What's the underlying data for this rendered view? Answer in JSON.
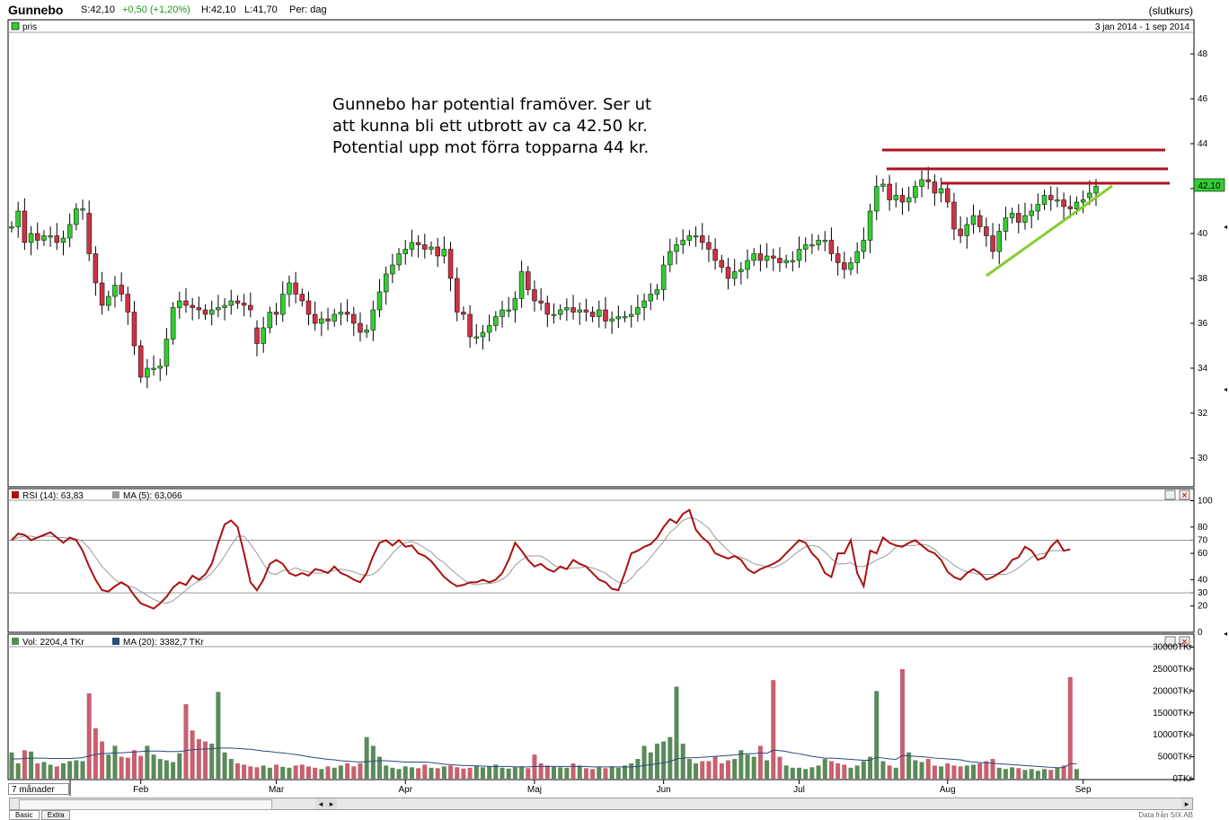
{
  "header": {
    "symbol": "Gunnebo",
    "items": [
      {
        "label": "S:",
        "value": "42,10",
        "color": "#000000"
      },
      {
        "label": "",
        "value": "+0,50 (+1,20%)",
        "color": "#1a9a1a"
      },
      {
        "label": "H:",
        "value": "42,10",
        "color": "#000000"
      },
      {
        "label": "L:",
        "value": "41,70",
        "color": "#000000"
      },
      {
        "label": "Per:",
        "value": "dag",
        "color": "#000000"
      }
    ],
    "mode": "(slutkurs)"
  },
  "price_panel": {
    "legend": "pris",
    "date_range": "3 jan 2014 - 1 sep 2014",
    "last_price_badge": "42,10",
    "annotation": [
      "Gunnebo har potential framöver. Ser ut",
      "att kunna bli ett utbrott av ca 42.50 kr.",
      "Potential upp mot förra topparna 44 kr."
    ]
  },
  "rsi_panel": {
    "legend_rsi": "RSI (14): 63,83",
    "legend_ma": "MA (5): 63,066"
  },
  "vol_panel": {
    "legend_vol": "Vol: 2204,4 TKr",
    "legend_ma": "MA (20): 3382,7 TKr"
  },
  "footer": {
    "period": "7 månader",
    "tabs": [
      "Basic",
      "Extra"
    ],
    "source": "Data från SIX AB"
  },
  "colors": {
    "up": "#33cc33",
    "down": "#cc3344",
    "rsi": "#aa1111",
    "rsi_ma": "#999999",
    "vol_up": "#5a8a5a",
    "vol_down": "#c86070",
    "vol_ma": "#2a4a7a",
    "resistance": "#b01020",
    "trend": "#88cc33"
  },
  "chart_data": [
    {
      "type": "candlestick",
      "name": "pris",
      "ylim": [
        29,
        49
      ],
      "yticks": [
        30,
        32,
        34,
        36,
        38,
        40,
        42,
        44,
        46,
        48
      ],
      "months": [
        "Feb",
        "Mar",
        "Apr",
        "Maj",
        "Jun",
        "Jul",
        "Aug",
        "Sep"
      ],
      "close": [
        40.3,
        41.0,
        39.6,
        40.0,
        39.7,
        39.9,
        39.9,
        39.6,
        39.8,
        40.4,
        41.1,
        41.1,
        39.1,
        37.8,
        36.8,
        37.2,
        37.7,
        37.3,
        36.5,
        35.0,
        33.6,
        34.0,
        34.0,
        34.1,
        35.3,
        36.7,
        37.0,
        36.8,
        36.7,
        36.6,
        36.4,
        36.6,
        36.7,
        36.8,
        37.0,
        36.9,
        36.8,
        36.6,
        35.1,
        35.8,
        36.5,
        36.4,
        37.3,
        37.8,
        37.3,
        37.0,
        36.4,
        36.0,
        36.2,
        36.1,
        36.4,
        36.5,
        36.4,
        36.0,
        35.6,
        35.7,
        36.6,
        37.4,
        38.2,
        38.6,
        39.1,
        39.3,
        39.6,
        39.5,
        39.3,
        39.4,
        39.0,
        39.3,
        38.0,
        36.5,
        36.4,
        35.4,
        35.4,
        35.6,
        35.9,
        36.3,
        36.6,
        36.6,
        37.1,
        38.3,
        37.5,
        37.0,
        36.9,
        36.4,
        36.4,
        36.6,
        36.7,
        36.5,
        36.6,
        36.5,
        36.3,
        36.6,
        36.1,
        36.2,
        36.3,
        36.3,
        36.4,
        36.7,
        37.0,
        37.3,
        37.5,
        38.6,
        39.2,
        39.5,
        39.7,
        39.9,
        39.9,
        39.6,
        39.3,
        38.8,
        38.5,
        38.0,
        38.3,
        38.4,
        38.8,
        39.1,
        38.8,
        39.0,
        38.9,
        38.7,
        38.8,
        38.8,
        39.3,
        39.5,
        39.5,
        39.7,
        39.7,
        39.1,
        38.7,
        38.4,
        38.7,
        39.2,
        39.7,
        41.0,
        42.1,
        42.2,
        41.5,
        41.7,
        41.4,
        41.6,
        42.1,
        42.4,
        42.3,
        41.8,
        42.0,
        41.4,
        40.2,
        39.9,
        40.4,
        40.8,
        40.3,
        39.9,
        39.2,
        40.1,
        40.7,
        40.9,
        40.5,
        40.8,
        41.0,
        41.3,
        41.7,
        41.5,
        41.5,
        41.2,
        41.1,
        41.4,
        41.5,
        41.8,
        42.1
      ],
      "open": [
        40.3,
        40.3,
        41.0,
        39.6,
        40.0,
        39.7,
        39.9,
        39.9,
        39.6,
        39.8,
        40.4,
        41.1,
        40.9,
        39.1,
        37.8,
        36.8,
        37.2,
        37.7,
        37.3,
        36.5,
        35.0,
        33.6,
        34.0,
        34.0,
        34.1,
        35.3,
        36.7,
        37.0,
        36.8,
        36.7,
        36.6,
        36.4,
        36.6,
        36.7,
        36.8,
        37.0,
        36.9,
        36.8,
        35.8,
        35.1,
        35.8,
        36.5,
        36.4,
        37.3,
        37.8,
        37.3,
        37.0,
        36.4,
        36.0,
        36.2,
        36.1,
        36.4,
        36.5,
        36.4,
        36.0,
        35.6,
        35.7,
        36.6,
        37.4,
        38.2,
        38.6,
        39.1,
        39.3,
        39.6,
        39.5,
        39.3,
        39.4,
        39.0,
        39.3,
        38.0,
        36.5,
        36.4,
        35.4,
        35.4,
        35.6,
        35.9,
        36.3,
        36.6,
        36.6,
        37.1,
        38.3,
        37.5,
        37.0,
        36.9,
        36.4,
        36.4,
        36.6,
        36.7,
        36.5,
        36.6,
        36.5,
        36.3,
        36.6,
        36.1,
        36.2,
        36.3,
        36.3,
        36.4,
        36.7,
        37.0,
        37.3,
        37.5,
        38.6,
        39.2,
        39.5,
        39.7,
        39.9,
        39.9,
        39.6,
        39.3,
        38.8,
        38.5,
        38.0,
        38.3,
        38.4,
        38.8,
        39.1,
        38.8,
        39.0,
        38.9,
        38.7,
        38.8,
        38.8,
        39.3,
        39.5,
        39.5,
        39.7,
        39.7,
        39.1,
        38.7,
        38.4,
        38.7,
        39.2,
        39.7,
        41.0,
        42.1,
        42.2,
        41.5,
        41.7,
        41.4,
        41.6,
        42.1,
        42.4,
        42.3,
        41.8,
        42.0,
        41.4,
        40.2,
        39.9,
        40.4,
        40.8,
        40.3,
        39.9,
        39.2,
        40.1,
        40.7,
        40.9,
        40.5,
        40.8,
        41.0,
        41.3,
        41.7,
        41.5,
        41.5,
        41.2,
        41.1,
        41.4,
        41.6,
        41.8
      ]
    },
    {
      "type": "line",
      "name": "RSI (14)",
      "ylim": [
        0,
        100
      ],
      "yticks": [
        0,
        20,
        30,
        40,
        60,
        70,
        80,
        100
      ],
      "reference_lines": [
        30,
        70
      ],
      "series": [
        {
          "name": "RSI (14)",
          "values": [
            70,
            75,
            74,
            70,
            72,
            74,
            76,
            72,
            68,
            72,
            70,
            62,
            50,
            40,
            32,
            31,
            35,
            38,
            35,
            28,
            22,
            20,
            18,
            22,
            27,
            34,
            38,
            36,
            43,
            40,
            44,
            52,
            68,
            82,
            85,
            80,
            60,
            38,
            32,
            40,
            52,
            55,
            52,
            45,
            43,
            45,
            43,
            48,
            47,
            45,
            50,
            45,
            43,
            40,
            38,
            45,
            58,
            68,
            70,
            66,
            70,
            65,
            66,
            60,
            58,
            54,
            48,
            42,
            38,
            35,
            36,
            38,
            38,
            40,
            38,
            40,
            45,
            55,
            68,
            62,
            55,
            50,
            52,
            48,
            46,
            50,
            48,
            55,
            52,
            50,
            45,
            40,
            38,
            33,
            32,
            45,
            60,
            62,
            65,
            67,
            72,
            80,
            86,
            83,
            90,
            93,
            78,
            72,
            68,
            60,
            58,
            56,
            58,
            55,
            48,
            45,
            48,
            50,
            52,
            55,
            60,
            65,
            70,
            68,
            60,
            55,
            45,
            42,
            60,
            60,
            70,
            45,
            35,
            62,
            60,
            72,
            68,
            66,
            65,
            68,
            70,
            66,
            62,
            60,
            55,
            46,
            42,
            40,
            45,
            48,
            45,
            40,
            42,
            45,
            48,
            55,
            57,
            65,
            62,
            55,
            57,
            65,
            70,
            62,
            63
          ]
        },
        {
          "name": "MA (5)",
          "values": [
            70,
            72,
            73,
            73,
            72,
            73,
            73,
            72,
            72,
            71,
            71,
            69,
            64,
            57,
            50,
            45,
            40,
            37,
            35,
            34,
            31,
            28,
            25,
            23,
            22,
            24,
            28,
            32,
            36,
            39,
            41,
            45,
            51,
            58,
            66,
            73,
            73,
            67,
            60,
            52,
            45,
            44,
            47,
            47,
            49,
            47,
            46,
            45,
            45,
            46,
            47,
            48,
            47,
            46,
            44,
            43,
            44,
            48,
            54,
            60,
            65,
            68,
            69,
            67,
            64,
            61,
            56,
            53,
            48,
            44,
            40,
            37,
            36,
            37,
            37,
            38,
            40,
            44,
            51,
            55,
            58,
            58,
            58,
            55,
            51,
            49,
            48,
            49,
            49,
            50,
            49,
            47,
            45,
            41,
            38,
            37,
            41,
            47,
            51,
            57,
            63,
            69,
            76,
            80,
            85,
            87,
            86,
            83,
            79,
            72,
            67,
            62,
            58,
            57,
            55,
            52,
            51,
            50,
            49,
            51,
            54,
            58,
            62,
            65,
            66,
            65,
            61,
            56,
            52,
            52,
            53,
            50,
            50,
            52,
            55,
            57,
            60,
            65,
            66,
            66,
            66,
            67,
            66,
            63,
            58,
            55,
            51,
            48,
            46,
            45,
            44,
            44,
            44,
            44,
            44,
            46,
            49,
            53,
            57,
            59,
            60,
            62,
            62,
            62,
            63
          ]
        }
      ]
    },
    {
      "type": "bar",
      "name": "Vol",
      "ylim": [
        0,
        32000
      ],
      "yticks": [
        0,
        5000,
        10000,
        15000,
        20000,
        25000,
        30000
      ],
      "tick_labels": [
        "0TKr",
        "5000TKr",
        "10000TKr",
        "15000TKr",
        "20000TKr",
        "25000TKr",
        "30000TKr"
      ],
      "values": [
        6000,
        3500,
        6500,
        6200,
        3500,
        3800,
        3200,
        2800,
        3500,
        4000,
        4200,
        4000,
        19500,
        11500,
        8500,
        5500,
        7500,
        5000,
        4800,
        6500,
        5200,
        7500,
        5500,
        4500,
        4200,
        3800,
        5800,
        17000,
        11000,
        9000,
        8500,
        8000,
        19800,
        6000,
        4500,
        3500,
        3200,
        2800,
        2600,
        3000,
        2500,
        3200,
        2700,
        2500,
        3000,
        3200,
        2800,
        2500,
        2200,
        2800,
        2500,
        3000,
        3500,
        2800,
        3500,
        9500,
        7500,
        5000,
        3000,
        2500,
        2200,
        2800,
        2600,
        2400,
        3200,
        2500,
        2400,
        2800,
        3000,
        2600,
        2300,
        2500,
        3000,
        2600,
        2800,
        3200,
        2500,
        2300,
        2600,
        2800,
        2400,
        5500,
        3500,
        3000,
        2700,
        2600,
        2500,
        3500,
        3000,
        2400,
        2200,
        2600,
        2400,
        2800,
        2500,
        3000,
        3500,
        4500,
        7500,
        6000,
        8000,
        8500,
        9500,
        21000,
        8000,
        4500,
        3500,
        4000,
        4000,
        5000,
        3500,
        4200,
        4500,
        6500,
        5500,
        5000,
        7500,
        4200,
        22500,
        5000,
        3000,
        2500,
        2500,
        2200,
        2600,
        3000,
        4500,
        4000,
        3500,
        3200,
        2500,
        3000,
        4000,
        5000,
        20000,
        4000,
        3000,
        2500,
        25000,
        6000,
        4200,
        3800,
        4500,
        3000,
        2800,
        3500,
        3000,
        2800,
        3000,
        3200,
        3500,
        4000,
        4500,
        2500,
        2200,
        2600,
        2400,
        2000,
        2200,
        1800,
        2200,
        2000,
        2500,
        3000,
        23200,
        2200
      ],
      "ma": [
        4500,
        4500,
        4600,
        4700,
        4700,
        4700,
        4600,
        4600,
        4600,
        4600,
        4700,
        4800,
        5200,
        5500,
        5700,
        5800,
        5900,
        5900,
        6000,
        6100,
        6200,
        6300,
        6300,
        6300,
        6200,
        6200,
        6200,
        6400,
        6600,
        6700,
        6800,
        6800,
        7000,
        7000,
        7000,
        6900,
        6800,
        6700,
        6500,
        6300,
        6200,
        6000,
        5900,
        5700,
        5500,
        5300,
        5000,
        4800,
        4600,
        4400,
        4300,
        4100,
        4000,
        3900,
        3800,
        3900,
        4000,
        4100,
        4100,
        4000,
        3900,
        3800,
        3800,
        3800,
        3800,
        3700,
        3500,
        3300,
        3200,
        3100,
        3000,
        3000,
        2900,
        2900,
        2800,
        2800,
        2800,
        2800,
        2700,
        2700,
        2700,
        2800,
        2800,
        2800,
        2800,
        2800,
        2800,
        2800,
        2800,
        2800,
        2700,
        2700,
        2700,
        2700,
        2700,
        2700,
        2700,
        2800,
        3000,
        3200,
        3400,
        3600,
        3900,
        4500,
        4700,
        4800,
        4800,
        4900,
        5000,
        5100,
        5200,
        5300,
        5400,
        5600,
        5700,
        5700,
        5900,
        5800,
        6500,
        6400,
        6200,
        5900,
        5700,
        5400,
        5100,
        4900,
        4700,
        4700,
        4600,
        4500,
        4400,
        4300,
        4200,
        4200,
        4900,
        4700,
        4500,
        4400,
        5300,
        5200,
        5100,
        5000,
        4900,
        4700,
        4600,
        4500,
        4400,
        4300,
        4000,
        3800,
        3700,
        3600,
        3500,
        3400,
        3300,
        3200,
        3100,
        3000,
        2900,
        2800,
        2700,
        2600,
        2500,
        2500,
        3400,
        3400
      ]
    }
  ]
}
